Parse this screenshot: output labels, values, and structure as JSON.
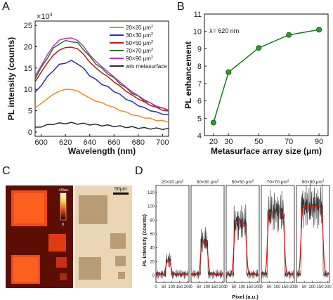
{
  "panels": {
    "A": "A",
    "B": "B",
    "C": "C",
    "D": "D"
  },
  "chart_data": [
    {
      "id": "A",
      "type": "line",
      "xlabel": "Wavelength (nm)",
      "ylabel": "PL intensity (counts)",
      "y_multiplier": "×10",
      "y_multiplier_exp": "3",
      "xlim": [
        595,
        705
      ],
      "ylim": [
        -1,
        26
      ],
      "xticks": [
        "600",
        "620",
        "640",
        "660",
        "680",
        "700"
      ],
      "yticks": [
        "0",
        "5",
        "10",
        "15",
        "20",
        "25"
      ],
      "legend_position": "top-right",
      "x": [
        595,
        600,
        605,
        610,
        615,
        620,
        625,
        630,
        635,
        640,
        645,
        650,
        655,
        660,
        665,
        670,
        675,
        680,
        685,
        690,
        695,
        700,
        705
      ],
      "series": [
        {
          "name": "20×20 μm",
          "name_sup": "2",
          "color": "#f08c1e",
          "values": [
            5.6,
            6.7,
            7.8,
            8.8,
            9.6,
            10.0,
            10.0,
            9.6,
            8.8,
            7.9,
            7.3,
            6.8,
            6.3,
            5.7,
            5.1,
            4.6,
            4.1,
            3.7,
            3.4,
            3.1,
            2.8,
            2.6,
            2.4
          ]
        },
        {
          "name": "30×30 μm",
          "name_sup": "2",
          "color": "#1f2fb8",
          "values": [
            9.2,
            11.0,
            12.8,
            14.5,
            15.7,
            16.3,
            16.6,
            16.1,
            14.8,
            13.3,
            12.2,
            11.3,
            10.5,
            9.6,
            8.7,
            7.8,
            7.0,
            6.3,
            5.6,
            5.1,
            4.6,
            4.3,
            4.0
          ]
        },
        {
          "name": "50×50 μm",
          "name_sup": "2",
          "color": "#c01818",
          "values": [
            11.8,
            14.0,
            16.2,
            18.0,
            19.2,
            19.8,
            19.9,
            19.5,
            18.2,
            16.4,
            15.0,
            13.9,
            12.9,
            11.8,
            10.7,
            9.6,
            8.6,
            7.8,
            7.0,
            6.3,
            5.7,
            5.2,
            4.8
          ]
        },
        {
          "name": "70×70 μm",
          "name_sup": "2",
          "color": "#207a20",
          "values": [
            12.6,
            15.0,
            17.4,
            19.5,
            20.8,
            21.3,
            21.3,
            20.8,
            19.4,
            17.6,
            16.1,
            14.8,
            13.7,
            12.6,
            11.4,
            10.2,
            9.2,
            8.3,
            7.4,
            6.7,
            6.0,
            5.5,
            5.1
          ]
        },
        {
          "name": "90×90 μm",
          "name_sup": "2",
          "color": "#c82cc8",
          "values": [
            13.0,
            15.6,
            18.0,
            20.2,
            21.5,
            22.0,
            22.0,
            21.5,
            20.0,
            18.1,
            16.6,
            15.3,
            14.1,
            12.9,
            11.7,
            10.5,
            9.4,
            8.5,
            7.6,
            6.8,
            6.1,
            5.6,
            5.2
          ]
        },
        {
          "name": "w/o metasurface",
          "name_sup": "",
          "color": "#2b2b2b",
          "values": [
            1.0,
            1.3,
            1.6,
            1.9,
            2.0,
            2.1,
            2.1,
            2.0,
            1.9,
            1.8,
            1.7,
            1.6,
            1.5,
            1.4,
            1.3,
            1.2,
            1.1,
            1.0,
            0.9,
            0.85,
            0.8,
            0.75,
            0.7
          ]
        }
      ]
    },
    {
      "id": "B",
      "type": "line",
      "xlabel": "Metasurface array size (μm)",
      "ylabel": "PL enhancement",
      "annotation": "λ= 620 nm",
      "xlim": [
        14,
        96
      ],
      "ylim": [
        4,
        11
      ],
      "xticks": [
        "20",
        "30",
        "50",
        "70",
        "90"
      ],
      "yticks": [
        "4",
        "5",
        "6",
        "7",
        "8",
        "9",
        "10",
        "11"
      ],
      "color": "#1a7a1a",
      "categories": [
        "20",
        "30",
        "50",
        "70",
        "90"
      ],
      "values": [
        4.75,
        7.65,
        9.05,
        9.8,
        10.1
      ]
    },
    {
      "id": "D",
      "type": "line",
      "xlabel": "Pixel (a.u.)",
      "ylabel": "PL intensity (counts)",
      "xlim": [
        0,
        210
      ],
      "ylim": [
        -10,
        130
      ],
      "xticks": [
        "0",
        "50",
        "100",
        "150",
        "200"
      ],
      "yticks": [
        "0",
        "20",
        "40",
        "60",
        "80",
        "100",
        "120"
      ],
      "colors": {
        "raw": "#333333",
        "fit": "#e01010"
      },
      "subplots": [
        {
          "title": "20×20 μm",
          "title_sup": "2",
          "plateau": 22,
          "edges": [
            62,
            96
          ]
        },
        {
          "title": "30×30 μm",
          "title_sup": "2",
          "plateau": 50,
          "edges": [
            60,
            108
          ]
        },
        {
          "title": "50×50 μm",
          "title_sup": "2",
          "plateau": 76,
          "edges": [
            48,
            130
          ]
        },
        {
          "title": "70×70 μm",
          "title_sup": "2",
          "plateau": 92,
          "edges": [
            38,
            148
          ]
        },
        {
          "title": "90×90 μm",
          "title_sup": "2",
          "plateau": 100,
          "edges": [
            28,
            170
          ]
        }
      ]
    }
  ],
  "panel_c": {
    "colorbar_max": "+Max.",
    "colorbar_min": "0",
    "scalebar_label": "50μm",
    "colors": {
      "pl_background": "#5c0e04",
      "pl_bright": "#ff5a1e",
      "optical_bg": "#ead6b5",
      "optical_square": "#b79c76"
    }
  }
}
